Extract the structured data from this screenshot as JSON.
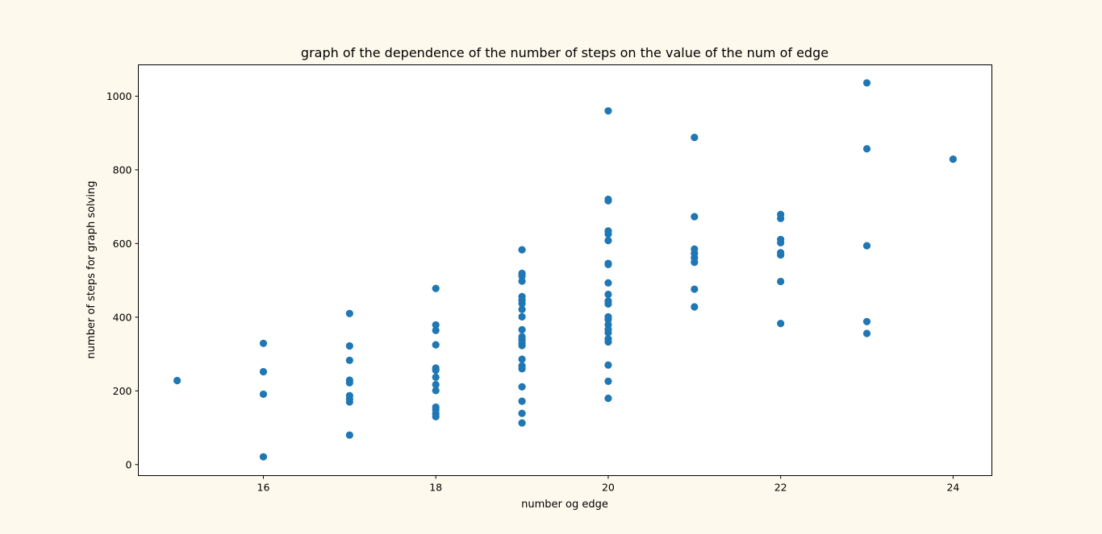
{
  "chart_data": {
    "type": "scatter",
    "title": "graph of the dependence of the number of steps on the value of the num of edge",
    "xlabel": "number og edge",
    "ylabel": "number of steps for graph solving",
    "xlim": [
      14.55,
      24.45
    ],
    "ylim": [
      -30,
      1085
    ],
    "xticks": [
      16,
      18,
      20,
      22,
      24
    ],
    "yticks": [
      0,
      200,
      400,
      600,
      800,
      1000
    ],
    "grid": false,
    "series": [
      {
        "color": "#1f77b4",
        "points": [
          [
            15,
            228
          ],
          [
            16,
            329
          ],
          [
            16,
            252
          ],
          [
            16,
            191
          ],
          [
            16,
            21
          ],
          [
            17,
            410
          ],
          [
            17,
            322
          ],
          [
            17,
            283
          ],
          [
            17,
            229
          ],
          [
            17,
            222
          ],
          [
            17,
            187
          ],
          [
            17,
            178
          ],
          [
            17,
            170
          ],
          [
            17,
            80
          ],
          [
            18,
            478
          ],
          [
            18,
            379
          ],
          [
            18,
            364
          ],
          [
            18,
            325
          ],
          [
            18,
            262
          ],
          [
            18,
            256
          ],
          [
            18,
            237
          ],
          [
            18,
            217
          ],
          [
            18,
            201
          ],
          [
            18,
            156
          ],
          [
            18,
            149
          ],
          [
            18,
            138
          ],
          [
            18,
            130
          ],
          [
            19,
            583
          ],
          [
            19,
            519
          ],
          [
            19,
            512
          ],
          [
            19,
            498
          ],
          [
            19,
            456
          ],
          [
            19,
            446
          ],
          [
            19,
            437
          ],
          [
            19,
            421
          ],
          [
            19,
            401
          ],
          [
            19,
            366
          ],
          [
            19,
            347
          ],
          [
            19,
            339
          ],
          [
            19,
            330
          ],
          [
            19,
            323
          ],
          [
            19,
            286
          ],
          [
            19,
            268
          ],
          [
            19,
            260
          ],
          [
            19,
            211
          ],
          [
            19,
            172
          ],
          [
            19,
            139
          ],
          [
            19,
            113
          ],
          [
            20,
            960
          ],
          [
            20,
            720
          ],
          [
            20,
            716
          ],
          [
            20,
            634
          ],
          [
            20,
            626
          ],
          [
            20,
            608
          ],
          [
            20,
            546
          ],
          [
            20,
            543
          ],
          [
            20,
            493
          ],
          [
            20,
            462
          ],
          [
            20,
            444
          ],
          [
            20,
            436
          ],
          [
            20,
            401
          ],
          [
            20,
            394
          ],
          [
            20,
            380
          ],
          [
            20,
            367
          ],
          [
            20,
            358
          ],
          [
            20,
            341
          ],
          [
            20,
            333
          ],
          [
            20,
            270
          ],
          [
            20,
            226
          ],
          [
            20,
            180
          ],
          [
            21,
            888
          ],
          [
            21,
            673
          ],
          [
            21,
            585
          ],
          [
            21,
            573
          ],
          [
            21,
            561
          ],
          [
            21,
            549
          ],
          [
            21,
            476
          ],
          [
            21,
            428
          ],
          [
            22,
            679
          ],
          [
            22,
            668
          ],
          [
            22,
            611
          ],
          [
            22,
            602
          ],
          [
            22,
            575
          ],
          [
            22,
            569
          ],
          [
            22,
            497
          ],
          [
            22,
            383
          ],
          [
            23,
            1036
          ],
          [
            23,
            857
          ],
          [
            23,
            594
          ],
          [
            23,
            388
          ],
          [
            23,
            356
          ],
          [
            24,
            829
          ]
        ]
      }
    ]
  }
}
